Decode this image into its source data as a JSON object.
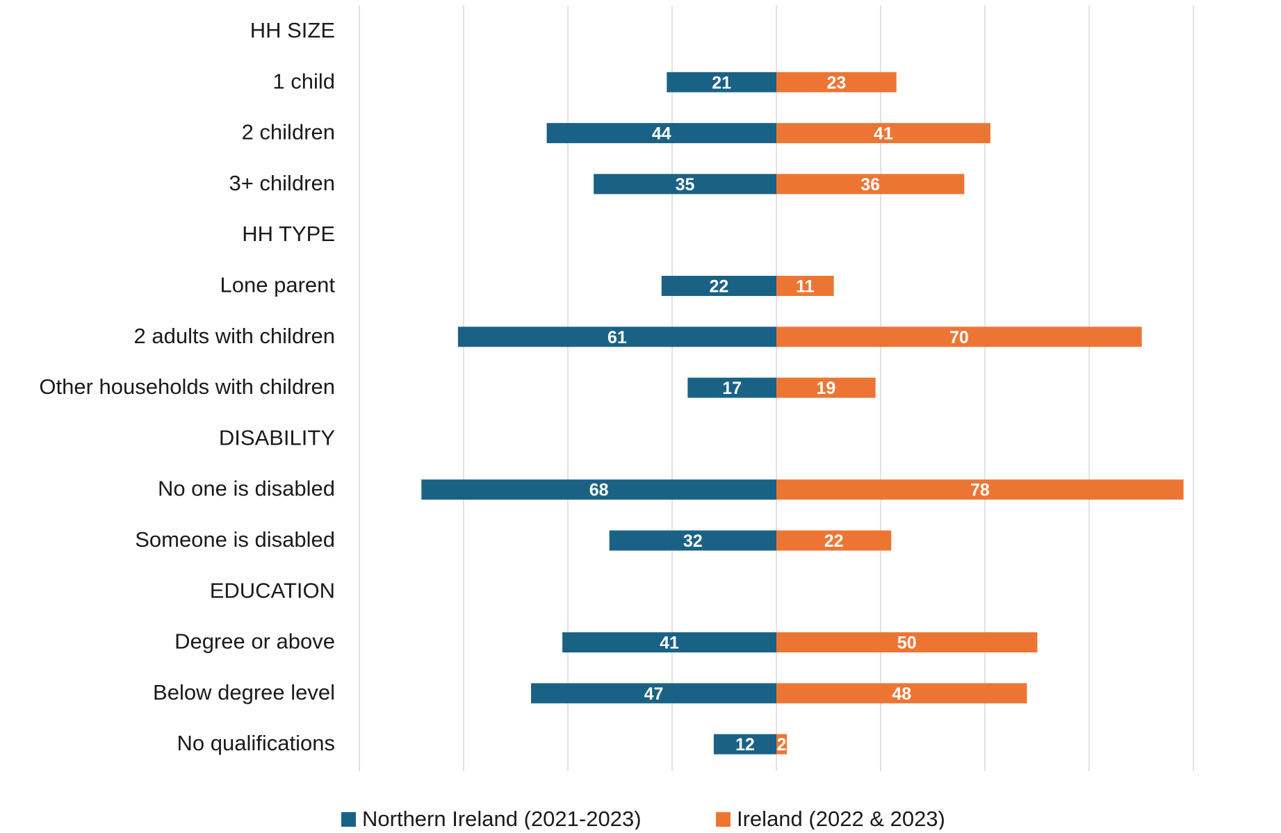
{
  "chart_data": {
    "type": "bar",
    "orientation": "horizontal-diverging",
    "title": "",
    "xlabel": "",
    "ylabel": "",
    "xlim": [
      -80,
      80
    ],
    "grid": true,
    "legend_position": "bottom",
    "categories": [
      "HH SIZE",
      "1 child",
      "2 children",
      "3+ children",
      "HH TYPE",
      "Lone parent",
      "2 adults with children",
      "Other households with children",
      "DISABILITY",
      "No one is disabled",
      "Someone is disabled",
      "EDUCATION",
      "Degree or above",
      "Below degree level",
      "No qualifications"
    ],
    "series": [
      {
        "name": "Northern Ireland (2021-2023)",
        "color": "#1a6285",
        "direction": "left",
        "values": [
          null,
          21,
          44,
          35,
          null,
          22,
          61,
          17,
          null,
          68,
          32,
          null,
          41,
          47,
          12
        ]
      },
      {
        "name": "Ireland (2022 & 2023)",
        "color": "#ed7534",
        "direction": "right",
        "values": [
          null,
          23,
          41,
          36,
          null,
          11,
          70,
          19,
          null,
          78,
          22,
          null,
          50,
          48,
          2
        ]
      }
    ],
    "label_color": "#ffffff",
    "grid_color": "#d9d9d9",
    "text_color": "#1a1a1a"
  }
}
